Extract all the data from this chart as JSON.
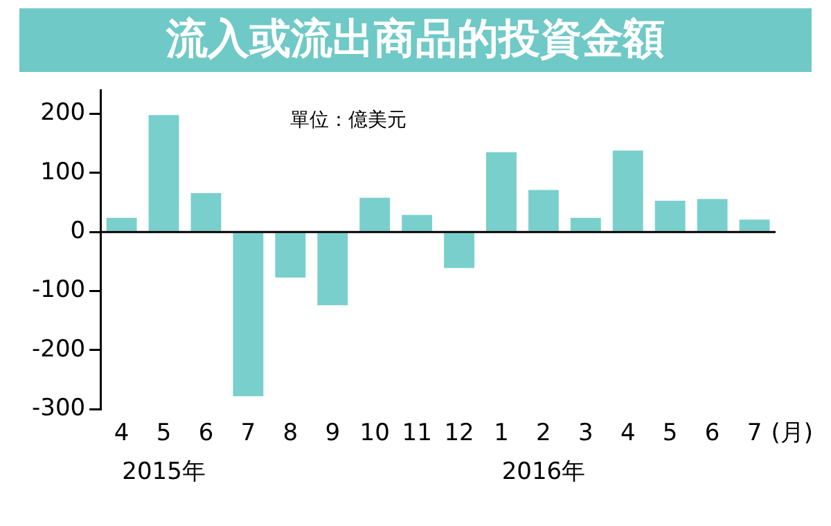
{
  "chart_data": {
    "type": "bar",
    "title": "流入或流出商品的投資金額",
    "ylabel": "單位：億美元",
    "categories": [
      "4",
      "5",
      "6",
      "7",
      "8",
      "9",
      "10",
      "11",
      "12",
      "1",
      "2",
      "3",
      "4",
      "5",
      "6",
      "7"
    ],
    "values": [
      24,
      198,
      66,
      -278,
      -77,
      -124,
      58,
      29,
      -61,
      135,
      71,
      24,
      138,
      53,
      56,
      21
    ],
    "color": "#79cfcc",
    "ylim": [
      -300,
      240
    ],
    "yticks": [
      -300,
      -200,
      -100,
      0,
      100,
      200
    ],
    "grid": false,
    "ref_lines": [
      {
        "axis": "y",
        "value": 0,
        "color": "#000000"
      }
    ],
    "legend": false,
    "annotations": [
      "(月)",
      "2015年",
      "2016年"
    ]
  }
}
